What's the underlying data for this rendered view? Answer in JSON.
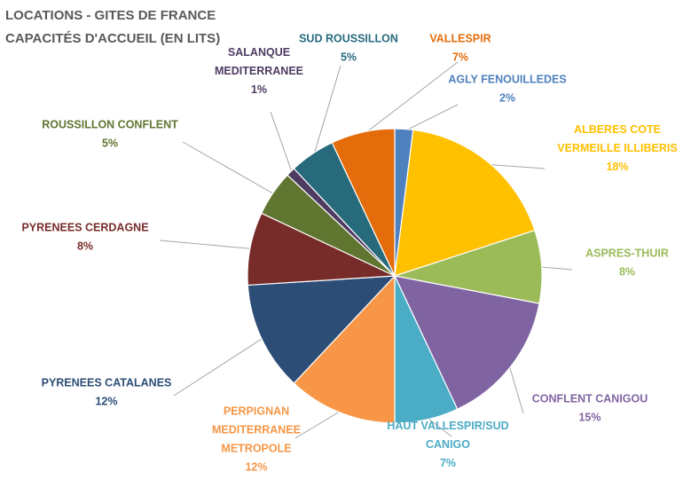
{
  "chart_data": {
    "type": "pie",
    "title": [
      "LOCATIONS - GITES DE FRANCE",
      "CAPACITÉS D'ACCUEIL (EN LITS)"
    ],
    "categories": [
      "AGLY FENOUILLEDES",
      "ALBERES COTE VERMEILLE ILLIBERIS",
      "ASPRES-THUIR",
      "CONFLENT CANIGOU",
      "HAUT VALLESPIR/SUD CANIGO",
      "PERPIGNAN MEDITERRANEE METROPOLE",
      "PYRENEES CATALANES",
      "PYRENEES CERDAGNE",
      "ROUSSILLON CONFLENT",
      "SALANQUE MEDITERRANEE",
      "SUD ROUSSILLON",
      "VALLESPIR"
    ],
    "values": [
      2,
      18,
      8,
      15,
      7,
      12,
      12,
      8,
      5,
      1,
      5,
      7
    ],
    "label_text": [
      "2%",
      "18%",
      "8%",
      "15%",
      "7%",
      "12%",
      "12%",
      "8%",
      "5%",
      "1%",
      "5%",
      "7%"
    ],
    "label_lines": [
      [
        "AGLY FENOUILLEDES"
      ],
      [
        "ALBERES COTE",
        "VERMEILLE ILLIBERIS"
      ],
      [
        "ASPRES-THUIR"
      ],
      [
        "CONFLENT CANIGOU"
      ],
      [
        "HAUT VALLESPIR/SUD",
        "CANIGO"
      ],
      [
        "PERPIGNAN",
        "MEDITERRANEE",
        "METROPOLE"
      ],
      [
        "PYRENEES CATALANES"
      ],
      [
        "PYRENEES CERDAGNE"
      ],
      [
        "ROUSSILLON CONFLENT"
      ],
      [
        "SALANQUE",
        "MEDITERRANEE"
      ],
      [
        "SUD ROUSSILLON"
      ],
      [
        "VALLESPIR"
      ]
    ],
    "colors": [
      "#4e81bd",
      "#ffc000",
      "#9bbb59",
      "#8064a2",
      "#4bacc6",
      "#f79646",
      "#2c4d75",
      "#772c2a",
      "#5f7530",
      "#4d3b62",
      "#276a7c",
      "#e46c0a"
    ],
    "label_colors": [
      "#4e81bd",
      "#ffc000",
      "#9bbb59",
      "#8064a2",
      "#4bacc6",
      "#f79646",
      "#2c4d75",
      "#772c2a",
      "#5f7530",
      "#4d3b62",
      "#276a7c",
      "#e46c0a"
    ],
    "legend": "none",
    "labels": "outside with leader lines"
  }
}
